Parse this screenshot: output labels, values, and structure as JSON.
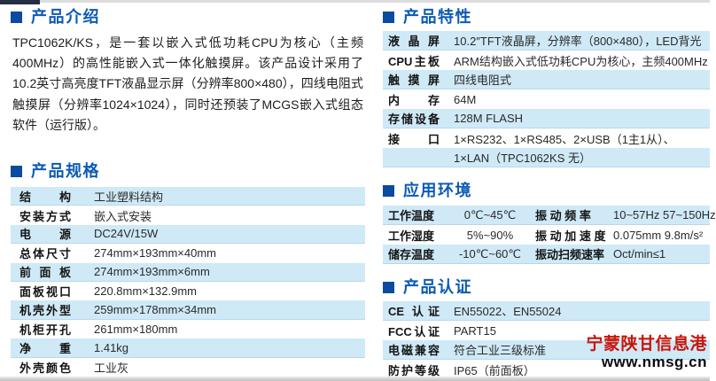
{
  "colors": {
    "accent_blue": "#0c5ab5",
    "bullet_blue": "#0a4aa0",
    "row_highlight_blue": "#cfe9f7",
    "watermark_red": "#c8150a"
  },
  "watermark": {
    "line1": "宁蒙陕甘信息港",
    "line2": "www.nmsg.cn"
  },
  "sections": {
    "intro": {
      "title": "产品介绍",
      "paragraph": "TPC1062K/KS，是一套以嵌入式低功耗CPU为核心（主频400MHz）的高性能嵌入式一体化触摸屏。该产品设计采用了10.2英寸高亮度TFT液晶显示屏（分辨率800×480），四线电阻式触摸屏（分辨率1024×1024），同时还预装了MCGS嵌入式组态软件（运行版）。"
    },
    "specs": {
      "title": "产品规格",
      "rows": [
        {
          "label": "结构",
          "value": "工业塑料结构"
        },
        {
          "label": "安装方式",
          "value": "嵌入式安装"
        },
        {
          "label": "电源",
          "value": "DC24V/15W"
        },
        {
          "label": "总体尺寸",
          "value": "274mm×193mm×40mm"
        },
        {
          "label": "前面板",
          "value": "274mm×193mm×6mm"
        },
        {
          "label": "面板视口",
          "value": "220.8mm×132.9mm"
        },
        {
          "label": "机壳外型",
          "value": "259mm×178mm×34mm"
        },
        {
          "label": "机柜开孔",
          "value": "261mm×180mm"
        },
        {
          "label": "净重",
          "value": "1.41kg"
        },
        {
          "label": "外壳颜色",
          "value": "工业灰"
        }
      ]
    },
    "features": {
      "title": "产品特性",
      "rows": [
        {
          "label": "液晶屏",
          "value": "10.2″TFT液晶屏，分辨率（800×480），LED背光"
        },
        {
          "label": "CPU主板",
          "value": "ARM结构嵌入式低功耗CPU为核心，主频400MHz"
        },
        {
          "label": "触摸屏",
          "value": "四线电阻式"
        },
        {
          "label": "内存",
          "value": "64M"
        },
        {
          "label": "存储设备",
          "value": "128M FLASH"
        },
        {
          "label": "接口",
          "value": "1×RS232、1×RS485、2×USB（1主1从）、"
        },
        {
          "label": "",
          "value": "1×LAN（TPC1062KS 无）"
        }
      ]
    },
    "environment": {
      "title": "应用环境",
      "rows": [
        {
          "c1": "工作温度",
          "c2": "0℃~45℃",
          "c3": "振 动 频 率",
          "c4": "10~57Hz 57~150Hz"
        },
        {
          "c1": "工作湿度",
          "c2": "5%~90%",
          "c3": "振 动 加 速 度",
          "c4": "0.075mm 9.8m/s²"
        },
        {
          "c1": "储存温度",
          "c2": "-10℃~60℃",
          "c3": "振动扫频速率",
          "c4": "Oct/min≤1"
        }
      ]
    },
    "certification": {
      "title": "产品认证",
      "rows": [
        {
          "label": "CE 认证",
          "value": "EN55022、EN55024"
        },
        {
          "label": "FCC认证",
          "value": "PART15"
        },
        {
          "label": "电磁兼容",
          "value": "符合工业三级标准"
        },
        {
          "label": "防护等级",
          "value": "IP65（前面板）"
        }
      ]
    }
  }
}
